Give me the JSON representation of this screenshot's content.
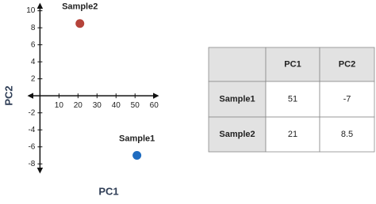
{
  "chart_data": {
    "type": "scatter",
    "x_label": "PC1",
    "y_label": "PC2",
    "series": [
      {
        "name": "Sample1",
        "color": "#1f6cc0",
        "x": [
          51
        ],
        "values": [
          -7
        ]
      },
      {
        "name": "Sample2",
        "color": "#b5433a",
        "x": [
          21
        ],
        "values": [
          8.5
        ]
      }
    ],
    "xlim": [
      -6,
      62
    ],
    "ylim": [
      -9,
      10.8
    ],
    "xticks": [
      10,
      20,
      30,
      40,
      50,
      60
    ],
    "yticks": [
      10,
      8,
      6,
      4,
      2,
      -2,
      -4,
      -6,
      -8
    ]
  },
  "table": {
    "columns": [
      "PC1",
      "PC2"
    ],
    "rows": [
      [
        "Sample1",
        51,
        -7
      ],
      [
        "Sample2",
        21,
        8.5
      ]
    ]
  }
}
